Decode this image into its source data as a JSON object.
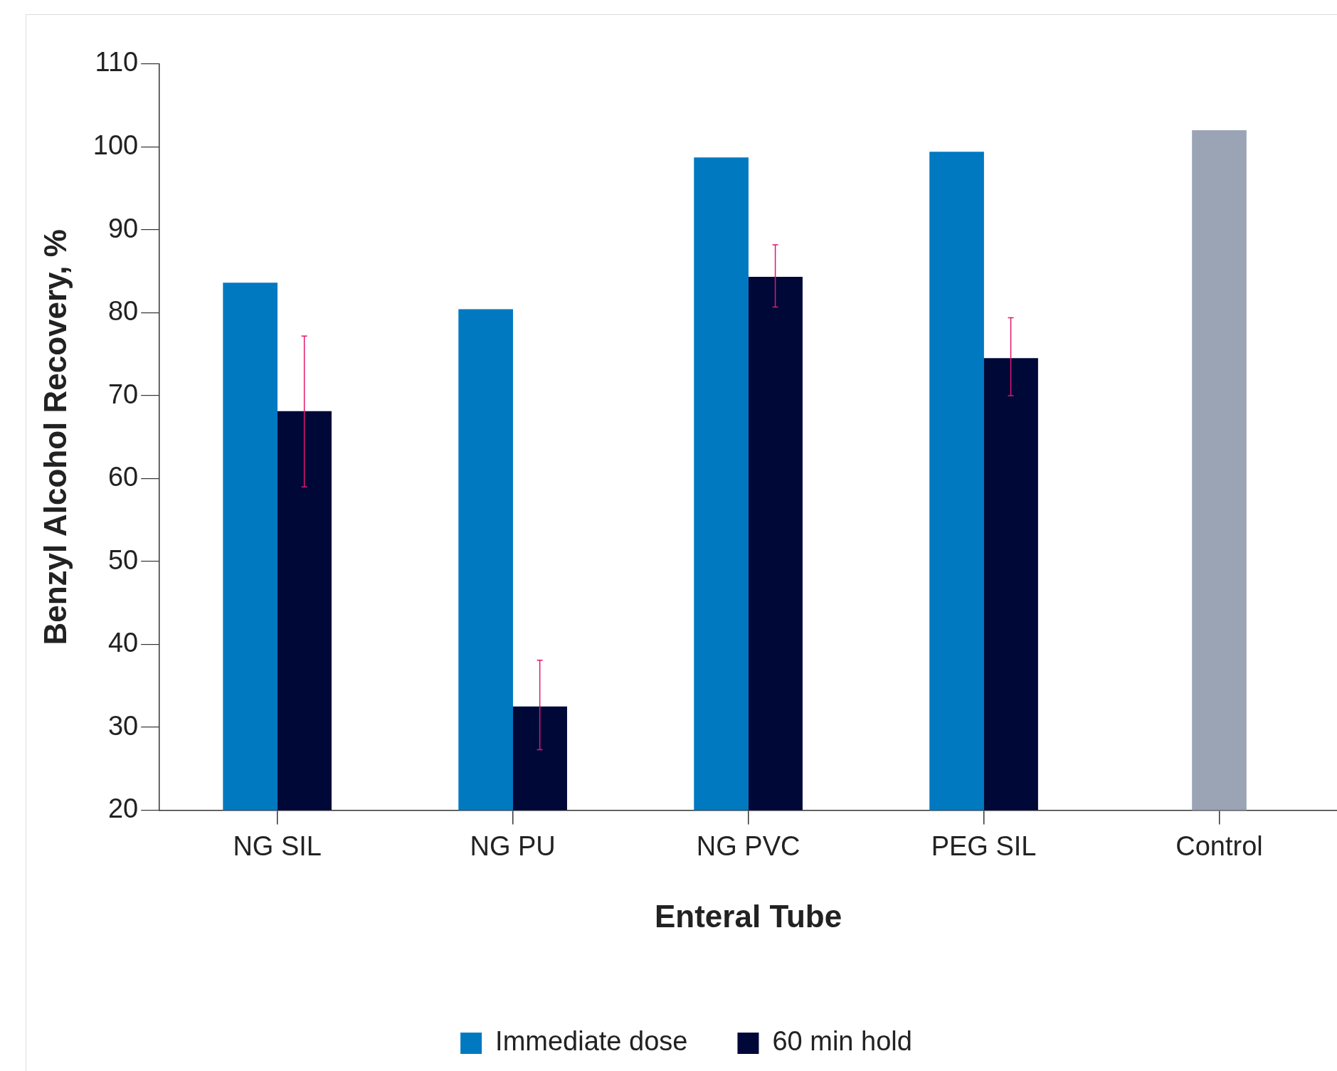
{
  "chart_data": {
    "type": "bar",
    "xlabel": "Enteral Tube",
    "ylabel": "Benzyl Alcohol Recovery, %",
    "categories": [
      "NG SIL",
      "NG PU",
      "NG PVC",
      "PEG SIL",
      "Control"
    ],
    "series": [
      {
        "name": "Immediate dose",
        "color": "#0079c1",
        "colors": [
          "#0079c1",
          "#0079c1",
          "#0079c1",
          "#0079c1",
          "#9ba4b5"
        ],
        "values": [
          83.6,
          80.4,
          98.7,
          99.4,
          102.0
        ]
      },
      {
        "name": "60 min hold",
        "color": "#000838",
        "values": [
          68.1,
          32.5,
          84.3,
          74.5,
          null
        ],
        "errors": [
          [
            59.0,
            77.2
          ],
          [
            27.3,
            38.1
          ],
          [
            80.7,
            88.2
          ],
          [
            70.0,
            79.4
          ],
          null
        ]
      }
    ],
    "ylim": [
      20,
      110
    ],
    "yticks": [
      20,
      30,
      40,
      50,
      60,
      70,
      80,
      90,
      100,
      110
    ],
    "legend": "bottom"
  }
}
